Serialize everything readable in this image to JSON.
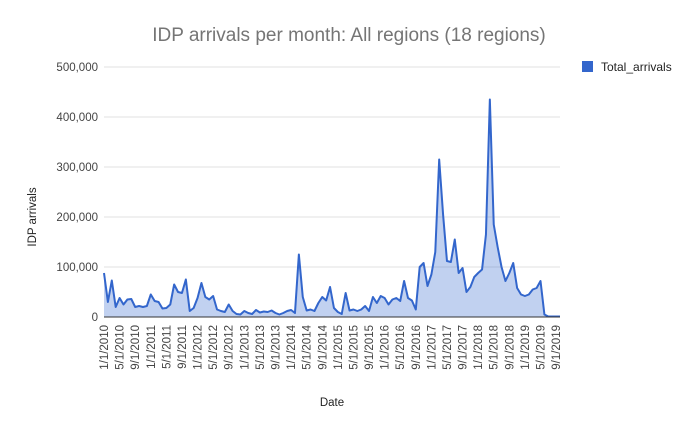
{
  "chart_data": {
    "type": "area",
    "title": "IDP arrivals per month: All regions (18 regions)",
    "xlabel": "Date",
    "ylabel": "IDP arrivals",
    "ylim": [
      0,
      500000
    ],
    "yticks": [
      "0",
      "100,000",
      "200,000",
      "300,000",
      "400,000",
      "500,000"
    ],
    "xticks": [
      "1/1/2010",
      "5/1/2010",
      "9/1/2010",
      "1/1/2011",
      "5/1/2011",
      "9/1/2011",
      "1/1/2012",
      "5/1/2012",
      "9/1/2012",
      "1/1/2013",
      "5/1/2013",
      "9/1/2013",
      "1/1/2014",
      "5/1/2014",
      "9/1/2014",
      "1/1/2015",
      "5/1/2015",
      "9/1/2015",
      "1/1/2016",
      "5/1/2016",
      "9/1/2016",
      "1/1/2017",
      "5/1/2017",
      "9/1/2017",
      "1/1/2018",
      "5/1/2018",
      "9/1/2018",
      "1/1/2019",
      "5/1/2019",
      "9/1/2019"
    ],
    "grid": true,
    "legend_position": "top-right",
    "series_color": "#3366cc",
    "series": [
      {
        "name": "Total_arrivals",
        "x_start": "1/1/2010",
        "frequency": "monthly",
        "values": [
          88000,
          30000,
          73000,
          20000,
          38000,
          25000,
          35000,
          36000,
          20000,
          22000,
          20000,
          22000,
          45000,
          32000,
          30000,
          17000,
          18000,
          25000,
          65000,
          50000,
          48000,
          75000,
          12000,
          18000,
          38000,
          68000,
          40000,
          35000,
          42000,
          15000,
          12000,
          10000,
          25000,
          12000,
          6000,
          5000,
          12000,
          8000,
          6000,
          14000,
          9000,
          11000,
          10000,
          13000,
          8000,
          5000,
          8000,
          12000,
          14000,
          8000,
          125000,
          40000,
          13000,
          15000,
          12000,
          28000,
          40000,
          33000,
          60000,
          18000,
          10000,
          6000,
          48000,
          13000,
          15000,
          12000,
          15000,
          22000,
          12000,
          40000,
          28000,
          42000,
          38000,
          25000,
          35000,
          38000,
          32000,
          72000,
          38000,
          33000,
          15000,
          100000,
          108000,
          62000,
          85000,
          130000,
          315000,
          205000,
          112000,
          110000,
          155000,
          88000,
          98000,
          50000,
          60000,
          80000,
          88000,
          95000,
          165000,
          435000,
          185000,
          140000,
          100000,
          72000,
          88000,
          108000,
          58000,
          45000,
          42000,
          45000,
          55000,
          58000,
          72000,
          5000,
          1000,
          1000,
          1000,
          1000
        ]
      }
    ]
  }
}
